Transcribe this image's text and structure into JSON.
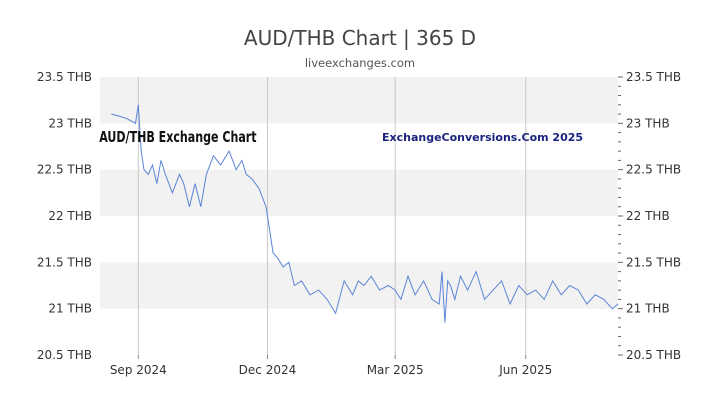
{
  "header": {
    "title": "AUD/THB Chart | 365 D",
    "source": "liveexchanges.com"
  },
  "annotations": {
    "left": "AUD/THB Exchange Chart",
    "right": "ExchangeConversions.Com 2025"
  },
  "colors": {
    "line": "#5b84d6",
    "band": "#f2f2f2",
    "annotation_right": "#1a237e"
  },
  "chart_data": {
    "type": "line",
    "title": "AUD/THB Chart | 365 D",
    "ylim": [
      20.5,
      23.5
    ],
    "y_ticks": [
      20.5,
      21,
      21.5,
      22,
      22.5,
      23,
      23.5
    ],
    "y_tick_labels": [
      "20.5 THB",
      "21 THB",
      "21.5 THB",
      "22 THB",
      "22.5 THB",
      "23 THB",
      "23.5 THB"
    ],
    "x_range": [
      "2024-08-05",
      "2025-08-05"
    ],
    "x_ticks": [
      "2024-09-01",
      "2024-12-01",
      "2025-03-01",
      "2025-06-01"
    ],
    "x_tick_labels": [
      "Sep 2024",
      "Dec 2024",
      "Mar 2025",
      "Jun 2025"
    ],
    "grid": true,
    "series": [
      {
        "x": [
          "2024-08-13",
          "2024-08-18",
          "2024-08-24",
          "2024-08-30",
          "2024-09-01",
          "2024-09-03",
          "2024-09-05",
          "2024-09-08",
          "2024-09-11",
          "2024-09-14",
          "2024-09-17",
          "2024-09-20",
          "2024-09-25",
          "2024-09-30",
          "2024-10-03",
          "2024-10-07",
          "2024-10-11",
          "2024-10-15",
          "2024-10-19",
          "2024-10-24",
          "2024-10-29",
          "2024-11-04",
          "2024-11-09",
          "2024-11-13",
          "2024-11-16",
          "2024-11-20",
          "2024-11-25",
          "2024-11-30",
          "2024-12-02",
          "2024-12-05",
          "2024-12-08",
          "2024-12-12",
          "2024-12-16",
          "2024-12-20",
          "2024-12-25",
          "2024-12-31",
          "2025-01-06",
          "2025-01-12",
          "2025-01-18",
          "2025-01-24",
          "2025-01-30",
          "2025-02-03",
          "2025-02-07",
          "2025-02-12",
          "2025-02-18",
          "2025-02-24",
          "2025-03-01",
          "2025-03-05",
          "2025-03-10",
          "2025-03-15",
          "2025-03-21",
          "2025-03-27",
          "2025-04-01",
          "2025-04-03",
          "2025-04-05",
          "2025-04-07",
          "2025-04-09",
          "2025-04-12",
          "2025-04-16",
          "2025-04-21",
          "2025-04-27",
          "2025-05-03",
          "2025-05-09",
          "2025-05-15",
          "2025-05-21",
          "2025-05-27",
          "2025-06-02",
          "2025-06-08",
          "2025-06-14",
          "2025-06-20",
          "2025-06-26",
          "2025-07-02",
          "2025-07-08",
          "2025-07-14",
          "2025-07-20",
          "2025-07-26",
          "2025-08-01",
          "2025-08-05"
        ],
        "values": [
          23.1,
          23.08,
          23.05,
          23.0,
          23.2,
          22.7,
          22.5,
          22.45,
          22.55,
          22.35,
          22.6,
          22.45,
          22.25,
          22.45,
          22.35,
          22.1,
          22.35,
          22.1,
          22.45,
          22.65,
          22.55,
          22.7,
          22.5,
          22.6,
          22.45,
          22.4,
          22.3,
          22.1,
          21.9,
          21.6,
          21.55,
          21.45,
          21.5,
          21.25,
          21.3,
          21.15,
          21.2,
          21.1,
          20.95,
          21.3,
          21.15,
          21.3,
          21.25,
          21.35,
          21.2,
          21.25,
          21.2,
          21.1,
          21.35,
          21.15,
          21.3,
          21.1,
          21.05,
          21.4,
          20.85,
          21.3,
          21.25,
          21.1,
          21.35,
          21.2,
          21.4,
          21.1,
          21.2,
          21.3,
          21.05,
          21.25,
          21.15,
          21.2,
          21.1,
          21.3,
          21.15,
          21.25,
          21.2,
          21.05,
          21.15,
          21.1,
          21.0,
          21.05
        ]
      }
    ]
  }
}
